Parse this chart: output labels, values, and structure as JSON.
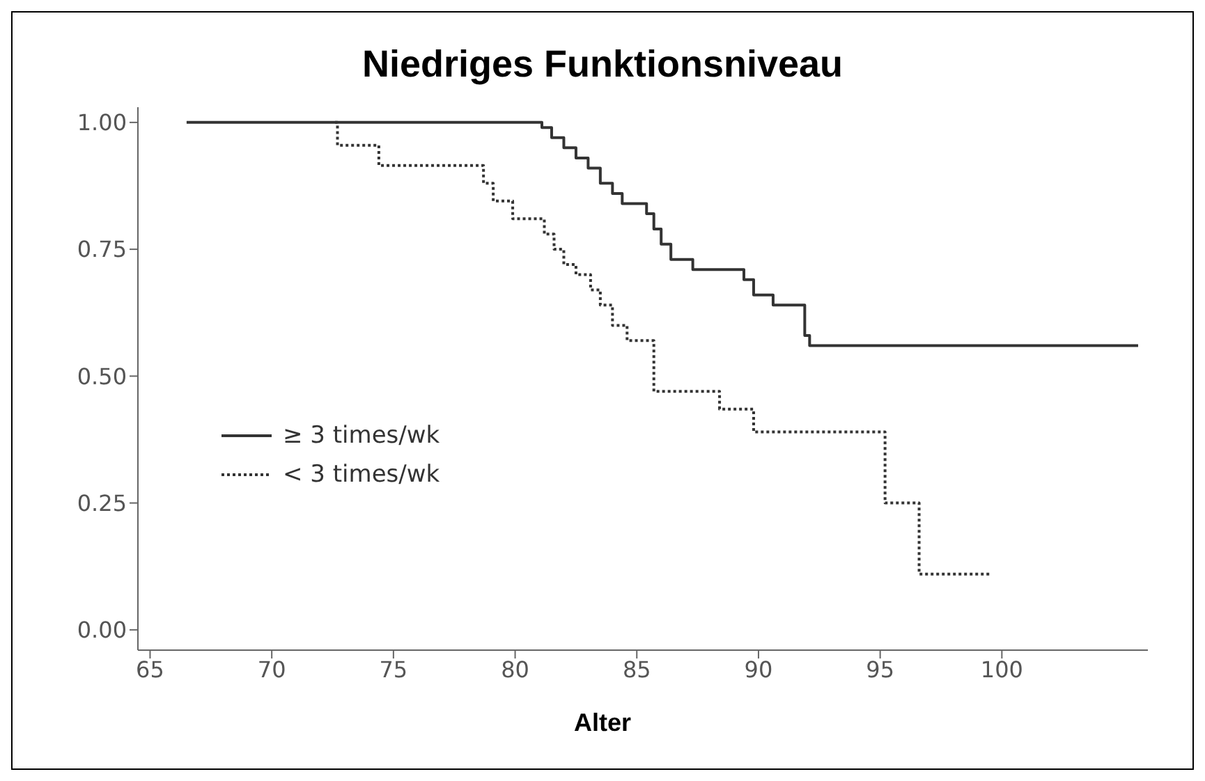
{
  "chart_data": {
    "type": "step",
    "title": "Niedriges Funktionsniveau",
    "xlabel": "Alter",
    "xlim": [
      64.5,
      106
    ],
    "xticks": [
      65,
      70,
      75,
      80,
      85,
      90,
      95,
      100
    ],
    "ylim": [
      -0.04,
      1.03
    ],
    "yticks": [
      {
        "value": 0,
        "label": "0.00"
      },
      {
        "value": 0.25,
        "label": "0.25"
      },
      {
        "value": 0.5,
        "label": "0.50"
      },
      {
        "value": 0.75,
        "label": "0.75"
      },
      {
        "value": 1,
        "label": "1.00"
      }
    ],
    "grid": false,
    "legend": "left",
    "marker": "none",
    "series": [
      {
        "name": "≥ 3 times/wk",
        "color": "#333333",
        "line_style": "solid",
        "x": [
          66.5,
          81.1,
          81.5,
          82,
          82.5,
          83,
          83.5,
          84,
          84.4,
          85.4,
          85.7,
          86,
          86.4,
          87.3,
          89.4,
          89.8,
          90.6,
          91.9,
          92.1,
          105.6
        ],
        "values": [
          1,
          0.99,
          0.97,
          0.95,
          0.93,
          0.91,
          0.88,
          0.86,
          0.84,
          0.82,
          0.79,
          0.76,
          0.73,
          0.71,
          0.69,
          0.66,
          0.64,
          0.58,
          0.56,
          0.56
        ]
      },
      {
        "name": "< 3 times/wk",
        "color": "#333333",
        "line_style": "dotted",
        "x": [
          72.6,
          72.7,
          74.4,
          78.7,
          79.1,
          79.9,
          81.2,
          81.6,
          82,
          82.5,
          83.1,
          83.5,
          84,
          84.6,
          85.7,
          88.4,
          89.8,
          95.2,
          96.6,
          99.5
        ],
        "values": [
          1,
          0.955,
          0.915,
          0.88,
          0.845,
          0.81,
          0.78,
          0.75,
          0.72,
          0.7,
          0.67,
          0.64,
          0.6,
          0.57,
          0.47,
          0.435,
          0.39,
          0.25,
          0.11,
          0.11
        ]
      }
    ]
  }
}
